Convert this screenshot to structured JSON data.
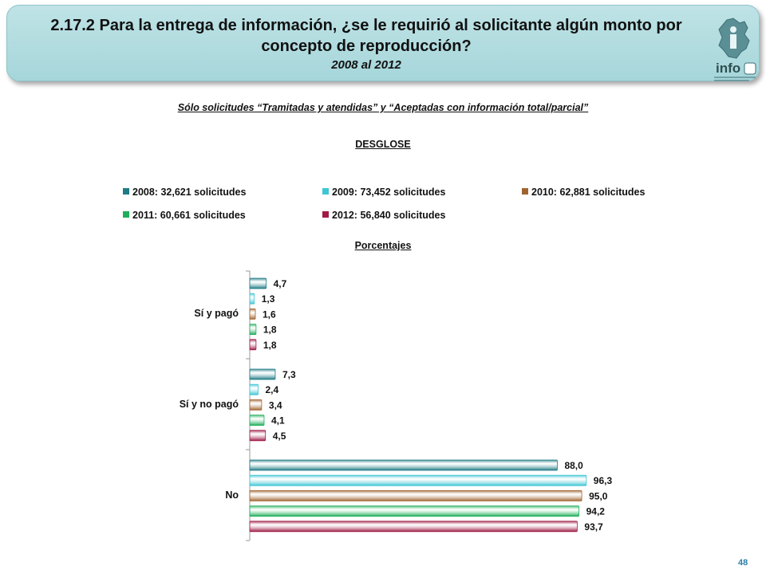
{
  "header": {
    "title": "2.17.2 Para la entrega de información, ¿se le requirió al solicitante algún monto por concepto de reproducción?",
    "years": "2008 al 2012",
    "logo_text": "info"
  },
  "note": "Sólo solicitudes “Tramitadas y atendidas” y “Aceptadas con información total/parcial”",
  "section_label": "DESGLOSE",
  "chart_label": "Porcentajes",
  "page_number": "48",
  "chart_data": {
    "type": "bar",
    "orientation": "horizontal",
    "categories": [
      "Sí y pagó",
      "Sí y no pagó",
      "No"
    ],
    "series": [
      {
        "name": "2008: 32,621 solicitudes",
        "color": "#1f7b85",
        "values": [
          4.7,
          7.3,
          88.0
        ],
        "labels": [
          "4,7",
          "7,3",
          "88,0"
        ]
      },
      {
        "name": "2009: 73,452 solicitudes",
        "color": "#3fc6d4",
        "values": [
          1.3,
          2.4,
          96.3
        ],
        "labels": [
          "1,3",
          "2,4",
          "96,3"
        ]
      },
      {
        "name": "2010: 62,881 solicitudes",
        "color": "#a0632f",
        "values": [
          1.6,
          3.4,
          95.0
        ],
        "labels": [
          "1,6",
          "3,4",
          "95,0"
        ]
      },
      {
        "name": "2011: 60,661 solicitudes",
        "color": "#1fae5a",
        "values": [
          1.8,
          4.1,
          94.2
        ],
        "labels": [
          "1,8",
          "4,1",
          "94,2"
        ]
      },
      {
        "name": "2012: 56,840 solicitudes",
        "color": "#a01c46",
        "values": [
          1.8,
          4.5,
          93.7
        ],
        "labels": [
          "1,8",
          "4,5",
          "93,7"
        ]
      }
    ],
    "xlim": [
      0,
      100
    ],
    "legend": "top",
    "grid": false
  }
}
